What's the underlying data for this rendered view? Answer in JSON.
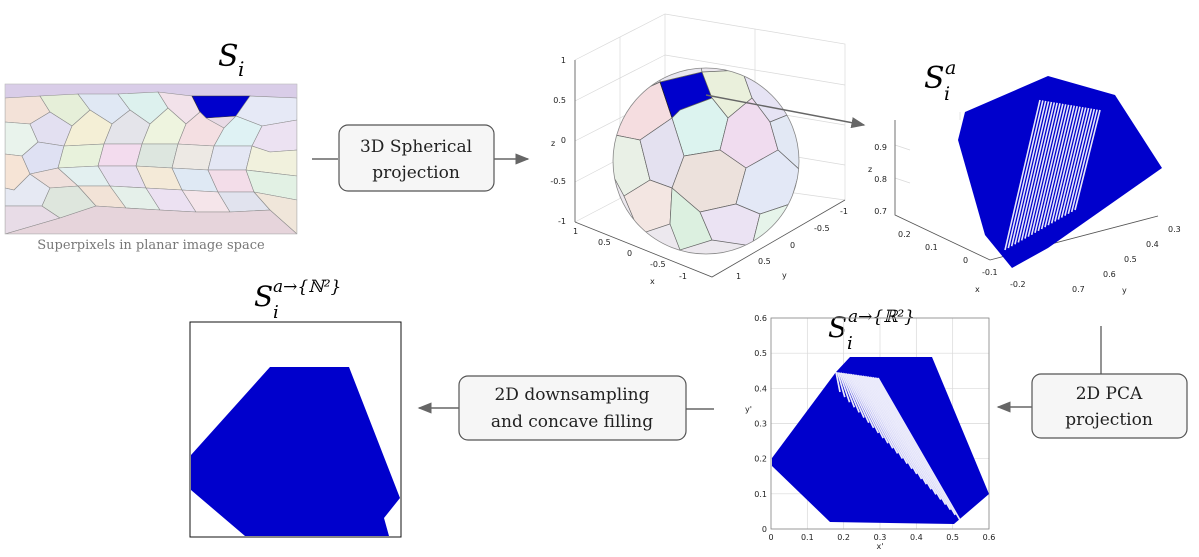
{
  "labels": {
    "s_i": "S",
    "s_i_sub": "i",
    "s_ia": "S",
    "s_ia_sub": "i",
    "s_ia_sup": "a",
    "s_r2": "S",
    "s_r2_sub": "i",
    "s_r2_sup": "a→{ℝ²}",
    "s_n2": "S",
    "s_n2_sub": "i",
    "s_n2_sup": "a→{ℕ²}",
    "caption": "Superpixels in planar image space"
  },
  "boxes": {
    "spherical_l1": "3D Spherical",
    "spherical_l2": "projection",
    "pca_l1": "2D PCA",
    "pca_l2": "projection",
    "down_l1": "2D downsampling",
    "down_l2": "and concave filling"
  },
  "sphere_axes": {
    "z_label": "z",
    "x_label": "x",
    "y_label": "y",
    "z_ticks": [
      "1",
      "0.5",
      "0",
      "-0.5",
      "-1"
    ],
    "x_ticks": [
      "1",
      "0.5",
      "0",
      "-0.5",
      "-1"
    ],
    "y_ticks": [
      "-1",
      "-0.5",
      "0",
      "0.5",
      "1"
    ]
  },
  "cloud_axes": {
    "z_label": "z",
    "x_label": "x",
    "y_label": "y",
    "z_ticks": [
      "0.9",
      "0.8",
      "0.7"
    ],
    "x_ticks": [
      "0.2",
      "0.1",
      "0",
      "-0.1",
      "-0.2"
    ],
    "y_ticks": [
      "0.3",
      "0.4",
      "0.5",
      "0.6",
      "0.7"
    ]
  },
  "pca_axes": {
    "x_label": "x'",
    "y_label": "y'",
    "x_ticks": [
      "0",
      "0.1",
      "0.2",
      "0.3",
      "0.4",
      "0.5",
      "0.6"
    ],
    "y_ticks": [
      "0",
      "0.1",
      "0.2",
      "0.3",
      "0.4",
      "0.5",
      "0.6"
    ]
  },
  "colors": {
    "blue": "#0000cc",
    "arrow": "#666666"
  }
}
